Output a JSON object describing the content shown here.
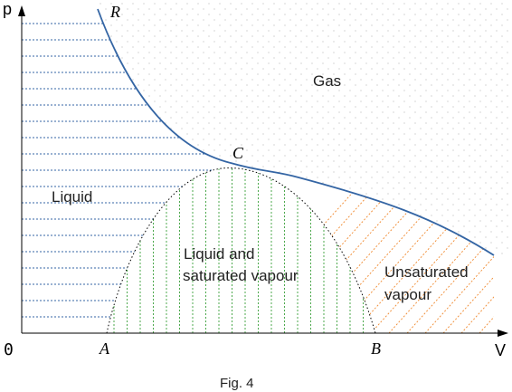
{
  "axes": {
    "y_label": "p",
    "x_label": "V",
    "origin_label": "0"
  },
  "points": {
    "R": "R",
    "C": "C",
    "A": "A",
    "B": "B"
  },
  "regions": {
    "gas": "Gas",
    "liquid": "Liquid",
    "liquid_vapour_line1": "Liquid and",
    "liquid_vapour_line2": "saturated vapour",
    "unsat_line1": "Unsaturated",
    "unsat_line2": "vapour"
  },
  "caption": "Fig. 4",
  "colors": {
    "curve": "#3465a4",
    "liquid_hatch": "#3465a4",
    "mix_hatch": "#3aa03a",
    "unsat_hatch": "#f08a30",
    "gas_dots": "#b0b0b0",
    "axis": "#000000"
  }
}
